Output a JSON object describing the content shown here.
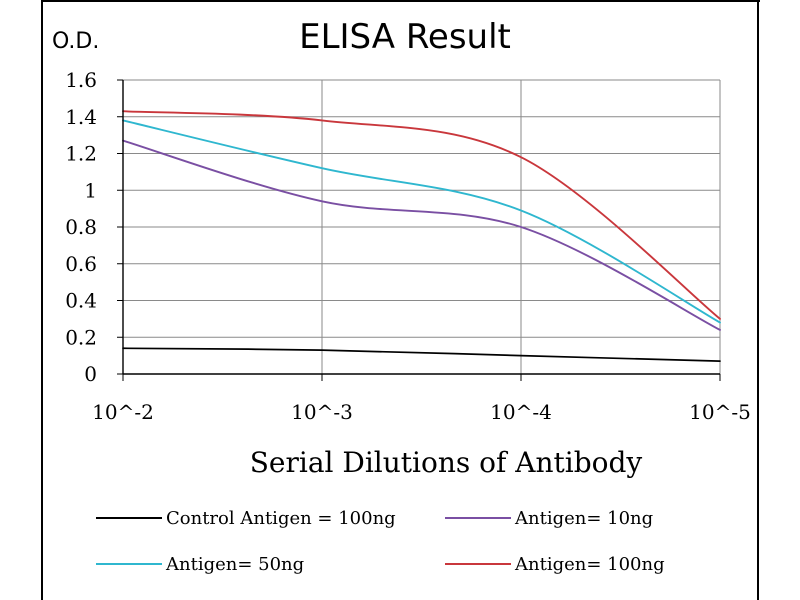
{
  "chart_data": {
    "type": "line",
    "title": "ELISA Result",
    "ylabel": "O.D.",
    "xlabel": "Serial Dilutions  of Antibody",
    "x": [
      "10^-2",
      "10^-3",
      "10^-4",
      "10^-5"
    ],
    "y_ticks": [
      "0",
      "0.2",
      "0.4",
      "0.6",
      "0.8",
      "1",
      "1.2",
      "1.4",
      "1.6"
    ],
    "ylim": [
      0,
      1.6
    ],
    "grid": true,
    "legend_position": "bottom",
    "series": [
      {
        "name": "Control Antigen = 100ng",
        "color": "#000000",
        "values": [
          0.14,
          0.13,
          0.1,
          0.07
        ]
      },
      {
        "name": "Antigen= 10ng",
        "color": "#7a4fa3",
        "values": [
          1.27,
          0.94,
          0.8,
          0.24
        ]
      },
      {
        "name": "Antigen= 50ng",
        "color": "#2fb7cf",
        "values": [
          1.38,
          1.12,
          0.89,
          0.28
        ]
      },
      {
        "name": "Antigen= 100ng",
        "color": "#c9373c",
        "values": [
          1.43,
          1.38,
          1.18,
          0.3
        ]
      }
    ]
  }
}
